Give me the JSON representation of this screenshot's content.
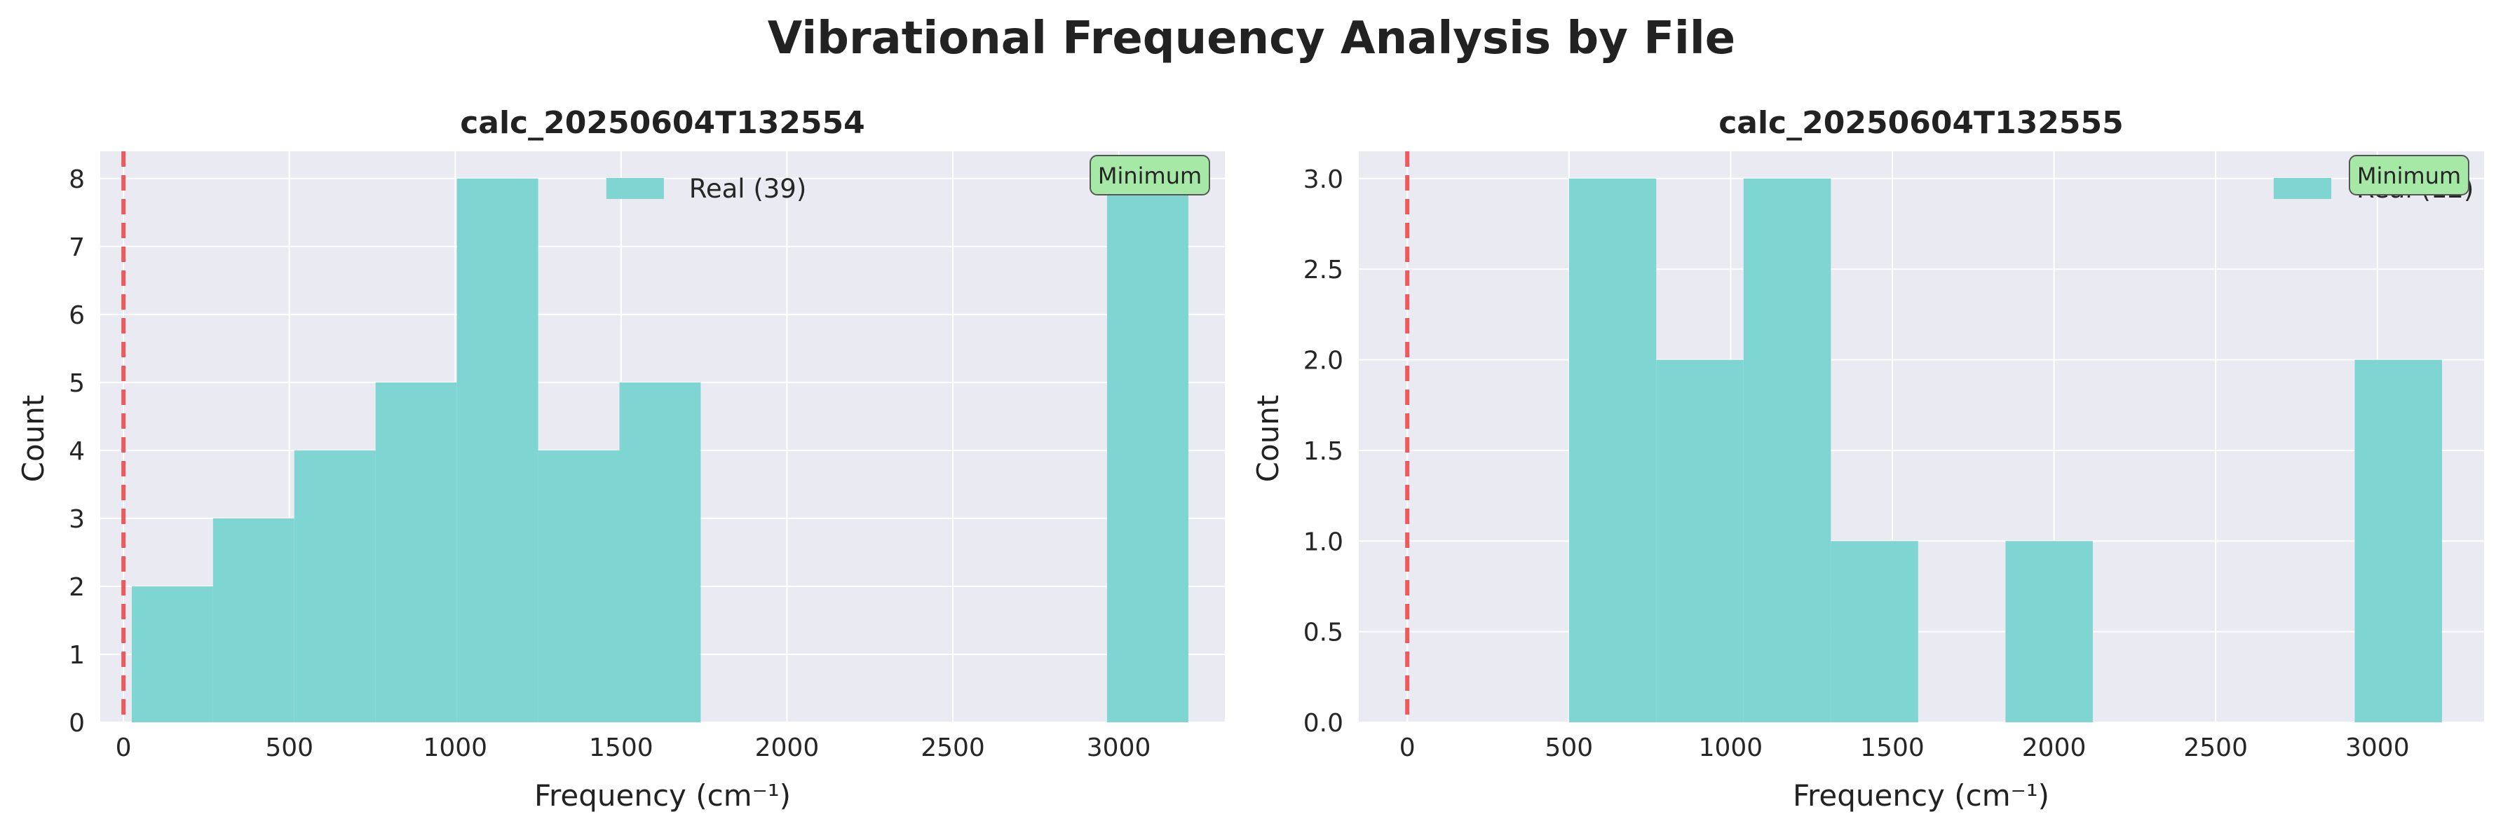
{
  "figure": {
    "title": "Vibrational Frequency Analysis by File"
  },
  "colors": {
    "background": "#eaeaf2",
    "grid": "#ffffff",
    "bar": "#7fd5d2",
    "marker_line": "#f0595c",
    "badge": "#a6e9a6",
    "text": "#262626"
  },
  "chart_data": [
    {
      "type": "bar",
      "title": "calc_20250604T132554",
      "xlabel": "Frequency (cm⁻¹)",
      "ylabel": "Count",
      "xlim": [
        -70,
        3320
      ],
      "ylim": [
        0,
        8.4
      ],
      "xticks": [
        "0",
        "500",
        "1000",
        "1500",
        "2000",
        "2500",
        "3000"
      ],
      "yticks": [
        "0",
        "1",
        "2",
        "3",
        "4",
        "5",
        "6",
        "7",
        "8"
      ],
      "grid": true,
      "bins": [
        {
          "x0": 25,
          "x1": 270,
          "count": 2
        },
        {
          "x0": 270,
          "x1": 515,
          "count": 3
        },
        {
          "x0": 515,
          "x1": 760,
          "count": 4
        },
        {
          "x0": 760,
          "x1": 1005,
          "count": 5
        },
        {
          "x0": 1005,
          "x1": 1250,
          "count": 8
        },
        {
          "x0": 1250,
          "x1": 1495,
          "count": 4
        },
        {
          "x0": 1495,
          "x1": 1740,
          "count": 5
        },
        {
          "x0": 2965,
          "x1": 3210,
          "count": 8
        }
      ],
      "marker_x": 0,
      "legend": {
        "label": "Real (39)",
        "position": "upper center"
      },
      "badge": {
        "label": "Minimum",
        "position": "top-right"
      }
    },
    {
      "type": "bar",
      "title": "calc_20250604T132555",
      "xlabel": "Frequency (cm⁻¹)",
      "ylabel": "Count",
      "xlim": [
        -150,
        3330
      ],
      "ylim": [
        0,
        3.15
      ],
      "xticks": [
        "0",
        "500",
        "1000",
        "1500",
        "2000",
        "2500",
        "3000"
      ],
      "yticks": [
        "0.0",
        "0.5",
        "1.0",
        "1.5",
        "2.0",
        "2.5",
        "3.0"
      ],
      "grid": true,
      "bins": [
        {
          "x0": 500,
          "x1": 770,
          "count": 3
        },
        {
          "x0": 770,
          "x1": 1040,
          "count": 2
        },
        {
          "x0": 1040,
          "x1": 1310,
          "count": 3
        },
        {
          "x0": 1310,
          "x1": 1580,
          "count": 1
        },
        {
          "x0": 1850,
          "x1": 2120,
          "count": 1
        },
        {
          "x0": 2930,
          "x1": 3200,
          "count": 2
        }
      ],
      "marker_x": 0,
      "legend": {
        "label": "Real (12)",
        "position": "upper right"
      },
      "badge": {
        "label": "Minimum",
        "position": "top-right"
      }
    }
  ]
}
